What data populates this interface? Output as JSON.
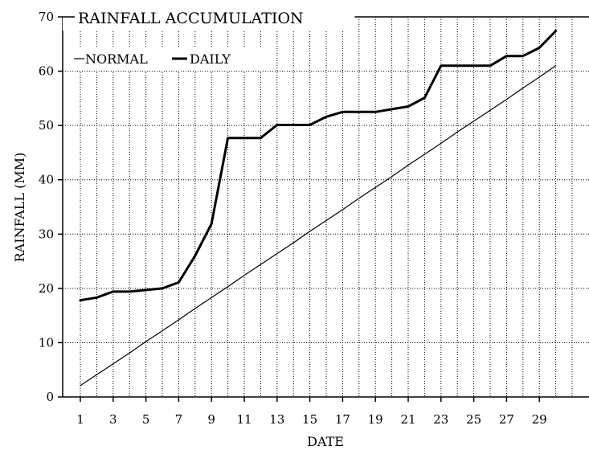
{
  "chart_data": {
    "type": "line",
    "title": "RAINFALL ACCUMULATION",
    "xlabel": "DATE",
    "ylabel": "RAINFALL (MM)",
    "x": [
      1,
      2,
      3,
      4,
      5,
      6,
      7,
      8,
      9,
      10,
      11,
      12,
      13,
      14,
      15,
      16,
      17,
      18,
      19,
      20,
      21,
      22,
      23,
      24,
      25,
      26,
      27,
      28,
      29,
      30
    ],
    "x_tick_labels": [
      "1",
      "3",
      "5",
      "7",
      "9",
      "11",
      "13",
      "15",
      "17",
      "19",
      "21",
      "23",
      "25",
      "27",
      "29"
    ],
    "y_tick_labels": [
      "0",
      "10",
      "20",
      "30",
      "40",
      "50",
      "60",
      "70"
    ],
    "xlim": [
      1,
      31
    ],
    "ylim": [
      0,
      70
    ],
    "grid": true,
    "legend_position": "top-left",
    "series": [
      {
        "name": "NORMAL",
        "values": [
          2.1,
          4.1,
          6.1,
          8.1,
          10.2,
          12.2,
          14.2,
          16.3,
          18.3,
          20.3,
          22.4,
          24.4,
          26.4,
          28.4,
          30.5,
          32.5,
          34.5,
          36.6,
          38.6,
          40.6,
          42.7,
          44.7,
          46.7,
          48.8,
          50.8,
          52.8,
          54.8,
          56.9,
          58.9,
          61.0
        ]
      },
      {
        "name": "DAILY",
        "values": [
          17.8,
          18.3,
          19.4,
          19.4,
          19.7,
          20.0,
          21.1,
          26.0,
          31.9,
          47.7,
          47.7,
          47.7,
          50.1,
          50.1,
          50.1,
          51.6,
          52.5,
          52.5,
          52.5,
          53.0,
          53.5,
          55.1,
          61.0,
          61.0,
          61.0,
          61.0,
          62.8,
          62.8,
          64.3,
          67.4
        ]
      }
    ]
  }
}
